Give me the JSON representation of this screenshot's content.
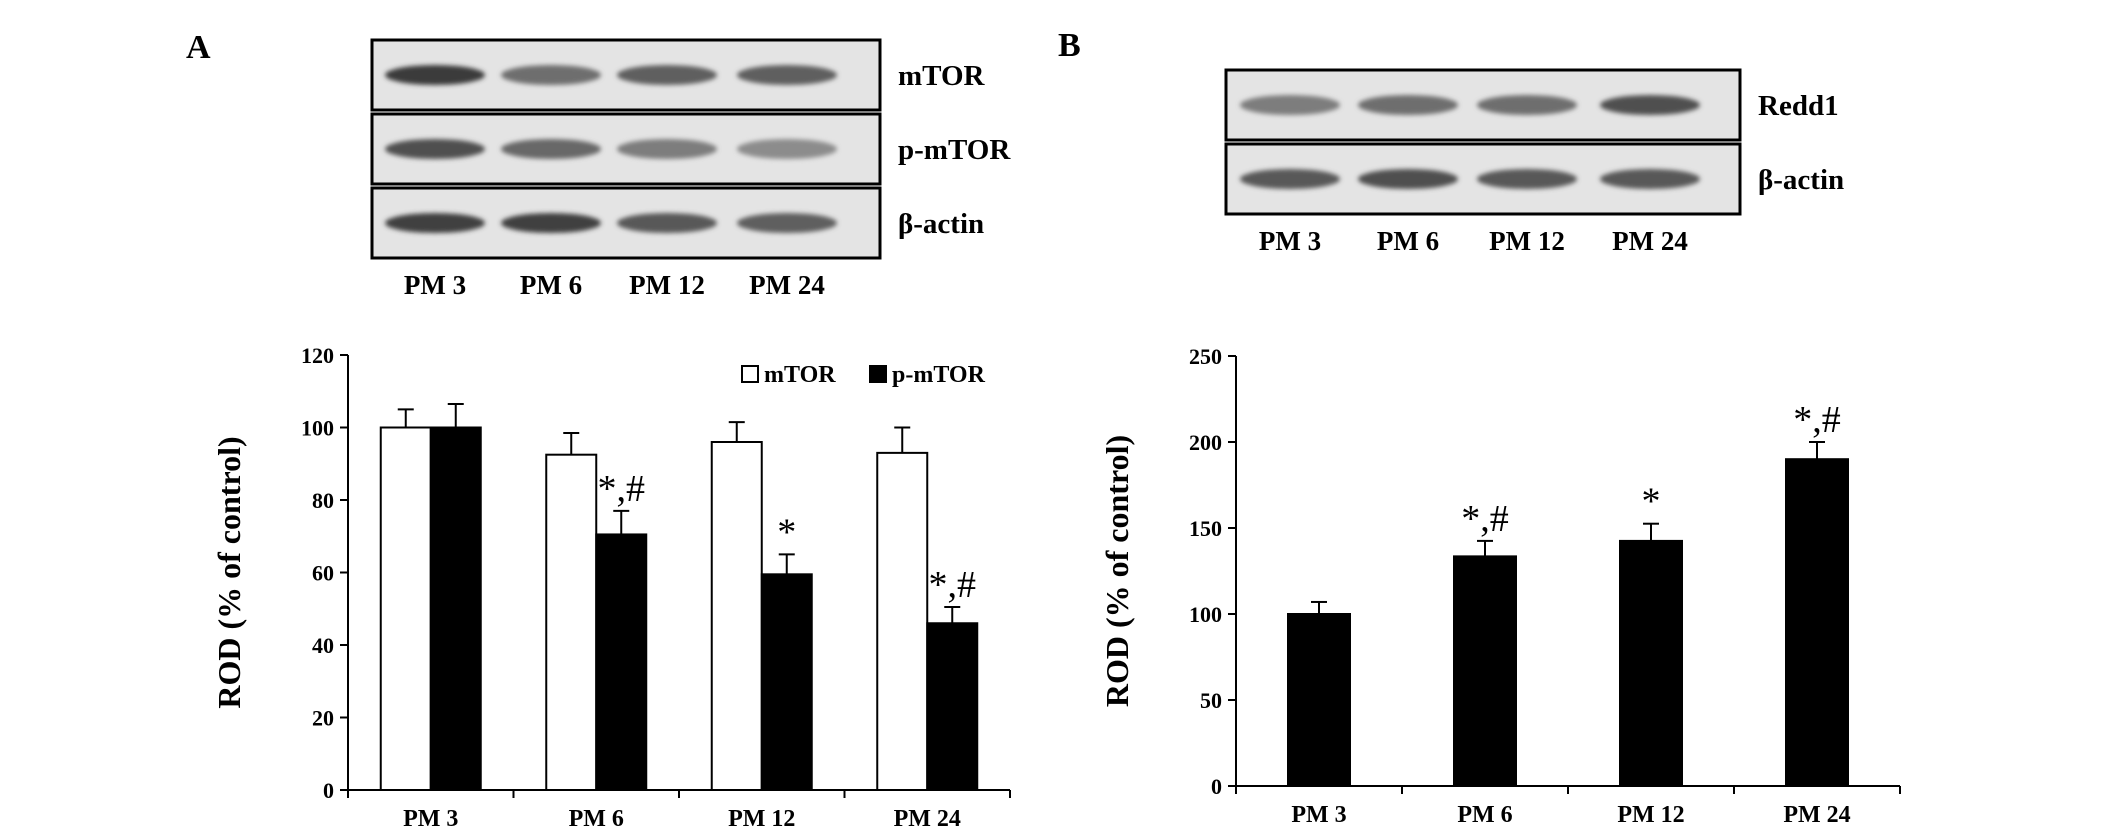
{
  "panels": {
    "a": {
      "letter": "A",
      "blot_rows": [
        "mTOR",
        "p-mTOR",
        "β-actin"
      ],
      "lanes": [
        "PM 3",
        "PM 6",
        "PM 12",
        "PM 24"
      ],
      "band_intensity": [
        [
          0.95,
          0.6,
          0.7,
          0.7
        ],
        [
          0.8,
          0.65,
          0.5,
          0.4
        ],
        [
          0.9,
          0.9,
          0.75,
          0.7
        ]
      ]
    },
    "b": {
      "letter": "B",
      "blot_rows": [
        "Redd1",
        "β-actin"
      ],
      "lanes": [
        "PM 3",
        "PM 6",
        "PM 12",
        "PM 24"
      ],
      "band_intensity": [
        [
          0.5,
          0.6,
          0.6,
          0.8
        ],
        [
          0.75,
          0.8,
          0.75,
          0.75
        ]
      ]
    }
  },
  "chart_data": [
    {
      "type": "bar",
      "categories": [
        "PM 3",
        "PM 6",
        "PM 12",
        "PM 24"
      ],
      "series": [
        {
          "name": "mTOR",
          "values": [
            100,
            92.5,
            96,
            93
          ],
          "errors": [
            5,
            6,
            5.5,
            7
          ],
          "color": "#ffffff"
        },
        {
          "name": "p-mTOR",
          "values": [
            100,
            70.5,
            59.5,
            46
          ],
          "errors": [
            6.5,
            6.5,
            5.5,
            4.5
          ],
          "color": "#000000"
        }
      ],
      "annotations": [
        {
          "category": "PM 6",
          "series": "p-mTOR",
          "text": "*,#"
        },
        {
          "category": "PM 12",
          "series": "p-mTOR",
          "text": "*"
        },
        {
          "category": "PM 24",
          "series": "p-mTOR",
          "text": "*,#"
        }
      ],
      "ylabel": "ROD (% of control)",
      "ylim": [
        0,
        120
      ],
      "yticks": [
        0,
        20,
        40,
        60,
        80,
        100,
        120
      ],
      "legend_position": "top-right",
      "grid": false
    },
    {
      "type": "bar",
      "categories": [
        "PM 3",
        "PM 6",
        "PM 12",
        "PM 24"
      ],
      "series": [
        {
          "name": "Redd1",
          "values": [
            100,
            133.5,
            142.5,
            190
          ],
          "errors": [
            7,
            9,
            10,
            10
          ],
          "color": "#000000"
        }
      ],
      "annotations": [
        {
          "category": "PM 6",
          "series": "Redd1",
          "text": "*,#"
        },
        {
          "category": "PM 12",
          "series": "Redd1",
          "text": "*"
        },
        {
          "category": "PM 24",
          "series": "Redd1",
          "text": "*,#"
        }
      ],
      "ylabel": "ROD (% of control)",
      "ylim": [
        0,
        250
      ],
      "yticks": [
        0,
        50,
        100,
        150,
        200,
        250
      ],
      "legend_position": "none",
      "grid": false
    }
  ]
}
